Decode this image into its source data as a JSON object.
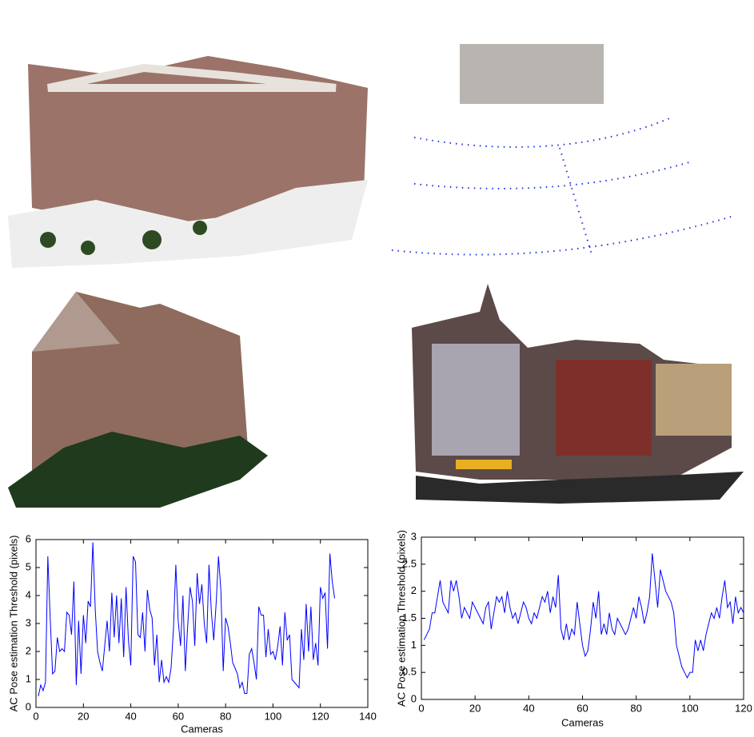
{
  "chart_data": [
    {
      "type": "line",
      "xlabel": "Cameras",
      "ylabel": "AC Pose estimation Threshold (pixels)",
      "x": [
        1,
        2,
        3,
        4,
        5,
        6,
        7,
        8,
        9,
        10,
        11,
        12,
        13,
        14,
        15,
        16,
        17,
        18,
        19,
        20,
        21,
        22,
        23,
        24,
        25,
        26,
        27,
        28,
        29,
        30,
        31,
        32,
        33,
        34,
        35,
        36,
        37,
        38,
        39,
        40,
        41,
        42,
        43,
        44,
        45,
        46,
        47,
        48,
        49,
        50,
        51,
        52,
        53,
        54,
        55,
        56,
        57,
        58,
        59,
        60,
        61,
        62,
        63,
        64,
        65,
        66,
        67,
        68,
        69,
        70,
        71,
        72,
        73,
        74,
        75,
        76,
        77,
        78,
        79,
        80,
        81,
        82,
        83,
        84,
        85,
        86,
        87,
        88,
        89,
        90,
        91,
        92,
        93,
        94,
        95,
        96,
        97,
        98,
        99,
        100,
        101,
        102,
        103,
        104,
        105,
        106,
        107,
        108,
        109,
        110,
        111,
        112,
        113,
        114,
        115,
        116,
        117,
        118,
        119,
        120,
        121,
        122,
        123,
        124,
        125,
        126
      ],
      "series": [
        {
          "color": "#0000ff",
          "values": [
            0.4,
            0.8,
            0.6,
            0.9,
            5.4,
            3.2,
            1.2,
            1.3,
            2.5,
            2.0,
            2.1,
            2.0,
            3.4,
            3.3,
            2.6,
            4.5,
            0.8,
            3.1,
            1.2,
            3.3,
            2.3,
            3.8,
            3.6,
            5.9,
            3.5,
            2.0,
            1.6,
            1.3,
            2.2,
            3.1,
            2.0,
            4.1,
            2.5,
            4.0,
            2.3,
            3.9,
            1.8,
            4.3,
            2.4,
            1.5,
            5.4,
            5.2,
            2.6,
            2.5,
            3.4,
            2.0,
            4.2,
            3.5,
            3.2,
            1.5,
            2.6,
            0.9,
            1.7,
            0.9,
            1.1,
            0.9,
            1.4,
            2.8,
            5.1,
            3.1,
            2.2,
            4.0,
            1.3,
            2.9,
            4.3,
            3.8,
            2.2,
            4.8,
            3.7,
            4.4,
            3.0,
            2.3,
            5.1,
            3.4,
            2.4,
            3.7,
            5.4,
            4.2,
            1.3,
            3.2,
            2.9,
            2.3,
            1.6,
            1.4,
            1.2,
            0.7,
            0.9,
            0.5,
            0.5,
            1.9,
            2.1,
            1.6,
            1.0,
            3.6,
            3.3,
            3.3,
            1.8,
            2.8,
            1.9,
            2.0,
            1.7,
            2.2,
            2.9,
            1.5,
            3.4,
            2.4,
            2.6,
            1.0,
            0.9,
            0.8,
            0.7,
            2.8,
            1.7,
            3.7,
            2.0,
            3.6,
            1.7,
            2.3,
            1.5,
            4.3,
            3.9,
            4.1,
            2.1,
            5.5,
            4.5,
            3.9
          ]
        }
      ],
      "xlim": [
        0,
        140
      ],
      "xticks": [
        0,
        20,
        40,
        60,
        80,
        100,
        120,
        140
      ],
      "ylim": [
        0,
        6
      ],
      "yticks": [
        0,
        1,
        2,
        3,
        4,
        5,
        6
      ]
    },
    {
      "type": "line",
      "xlabel": "Cameras",
      "ylabel": "AC Pose estimation Threshold (pixels)",
      "x": [
        1,
        2,
        3,
        4,
        5,
        6,
        7,
        8,
        9,
        10,
        11,
        12,
        13,
        14,
        15,
        16,
        17,
        18,
        19,
        20,
        21,
        22,
        23,
        24,
        25,
        26,
        27,
        28,
        29,
        30,
        31,
        32,
        33,
        34,
        35,
        36,
        37,
        38,
        39,
        40,
        41,
        42,
        43,
        44,
        45,
        46,
        47,
        48,
        49,
        50,
        51,
        52,
        53,
        54,
        55,
        56,
        57,
        58,
        59,
        60,
        61,
        62,
        63,
        64,
        65,
        66,
        67,
        68,
        69,
        70,
        71,
        72,
        73,
        74,
        75,
        76,
        77,
        78,
        79,
        80,
        81,
        82,
        83,
        84,
        85,
        86,
        87,
        88,
        89,
        90,
        91,
        92,
        93,
        94,
        95,
        96,
        97,
        98,
        99,
        100,
        101,
        102,
        103,
        104,
        105,
        106,
        107,
        108,
        109,
        110,
        111,
        112,
        113,
        114,
        115,
        116,
        117,
        118,
        119,
        120
      ],
      "series": [
        {
          "color": "#0000ff",
          "values": [
            1.1,
            1.2,
            1.3,
            1.6,
            1.6,
            1.9,
            2.2,
            1.8,
            1.7,
            1.6,
            2.2,
            2.0,
            2.2,
            1.9,
            1.5,
            1.7,
            1.6,
            1.5,
            1.8,
            1.7,
            1.6,
            1.5,
            1.4,
            1.7,
            1.8,
            1.3,
            1.6,
            1.9,
            1.8,
            1.9,
            1.6,
            2.0,
            1.7,
            1.5,
            1.6,
            1.4,
            1.6,
            1.8,
            1.7,
            1.5,
            1.4,
            1.6,
            1.5,
            1.7,
            1.9,
            1.8,
            2.0,
            1.6,
            1.9,
            1.7,
            2.3,
            1.3,
            1.1,
            1.4,
            1.1,
            1.3,
            1.2,
            1.8,
            1.4,
            1.0,
            0.8,
            0.9,
            1.3,
            1.8,
            1.5,
            2.0,
            1.2,
            1.4,
            1.2,
            1.6,
            1.3,
            1.2,
            1.5,
            1.4,
            1.3,
            1.2,
            1.3,
            1.5,
            1.7,
            1.5,
            1.9,
            1.7,
            1.4,
            1.6,
            1.9,
            2.7,
            2.2,
            1.7,
            2.4,
            2.2,
            2.0,
            1.9,
            1.8,
            1.6,
            1.0,
            0.8,
            0.6,
            0.5,
            0.4,
            0.5,
            0.5,
            1.1,
            0.9,
            1.1,
            0.9,
            1.2,
            1.4,
            1.6,
            1.5,
            1.7,
            1.5,
            1.9,
            2.2,
            1.7,
            1.8,
            1.4,
            1.9,
            1.6,
            1.7,
            1.6
          ]
        }
      ],
      "xlim": [
        0,
        120
      ],
      "xticks": [
        0,
        20,
        40,
        60,
        80,
        100,
        120
      ],
      "ylim": [
        0,
        3
      ],
      "yticks": [
        0,
        0.5,
        1,
        1.5,
        2,
        2.5,
        3
      ]
    }
  ]
}
